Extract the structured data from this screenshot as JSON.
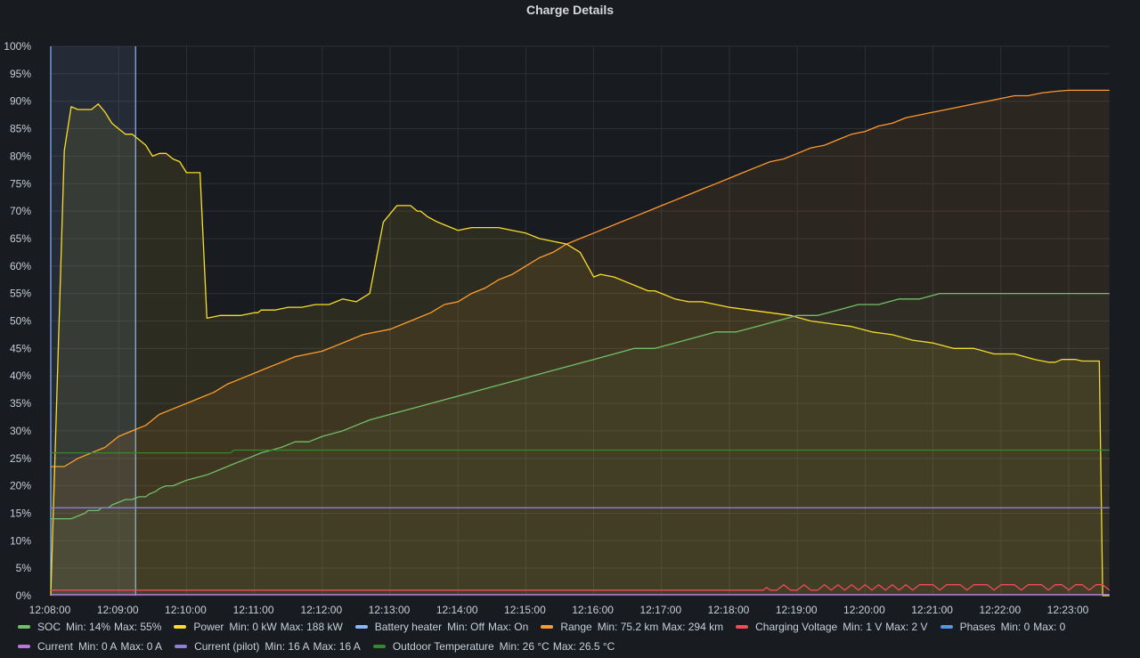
{
  "panel": {
    "title": "Charge Details"
  },
  "chart_data": {
    "type": "line",
    "y_ticks": [
      "0%",
      "5%",
      "10%",
      "15%",
      "20%",
      "25%",
      "30%",
      "35%",
      "40%",
      "45%",
      "50%",
      "55%",
      "60%",
      "65%",
      "70%",
      "75%",
      "80%",
      "85%",
      "90%",
      "95%",
      "100%"
    ],
    "ylim": [
      0,
      100
    ],
    "x_ticks": [
      "12:08:00",
      "12:09:00",
      "12:10:00",
      "12:11:00",
      "12:12:00",
      "12:13:00",
      "12:14:00",
      "12:15:00",
      "12:16:00",
      "12:17:00",
      "12:18:00",
      "12:19:00",
      "12:20:00",
      "12:21:00",
      "12:22:00",
      "12:23:00"
    ],
    "xlim_minutes": [
      0,
      15.65
    ],
    "grid": true,
    "legend_position": "bottom",
    "selection_minutes": [
      0,
      1.25
    ],
    "series": [
      {
        "name": "SOC",
        "color": "#73bf69",
        "x": [
          0,
          0.3,
          0.4,
          0.5,
          0.55,
          0.7,
          0.75,
          0.85,
          0.9,
          1.0,
          1.1,
          1.2,
          1.3,
          1.4,
          1.45,
          1.55,
          1.6,
          1.7,
          1.8,
          2.0,
          2.3,
          2.5,
          2.7,
          2.9,
          3.1,
          3.4,
          3.6,
          3.8,
          4.0,
          4.3,
          4.5,
          4.7,
          5.0,
          5.3,
          5.6,
          5.9,
          6.2,
          6.5,
          6.8,
          7.1,
          7.4,
          7.7,
          8.0,
          8.3,
          8.6,
          8.9,
          9.2,
          9.5,
          9.8,
          10.1,
          10.4,
          10.7,
          11.0,
          11.3,
          11.6,
          11.9,
          12.2,
          12.5,
          12.8,
          13.1,
          13.4,
          13.7,
          14.0,
          14.3,
          14.6,
          14.9,
          15.1,
          15.6
        ],
        "y": [
          14,
          14,
          14.5,
          15,
          15.5,
          15.5,
          16,
          16,
          16.5,
          17,
          17.5,
          17.5,
          18,
          18,
          18.5,
          19,
          19.5,
          20,
          20,
          21,
          22,
          23,
          24,
          25,
          26,
          27,
          28,
          28,
          29,
          30,
          31,
          32,
          33,
          34,
          35,
          36,
          37,
          38,
          39,
          40,
          41,
          42,
          43,
          44,
          45,
          45,
          46,
          47,
          48,
          48,
          49,
          50,
          51,
          51,
          52,
          53,
          53,
          54,
          54,
          55,
          55,
          55,
          55,
          55,
          55,
          55,
          55,
          55
        ]
      },
      {
        "name": "Power",
        "color": "#fade2a",
        "x": [
          0,
          0.2,
          0.3,
          0.4,
          0.5,
          0.6,
          0.65,
          0.7,
          0.8,
          0.9,
          1.0,
          1.1,
          1.2,
          1.3,
          1.4,
          1.5,
          1.6,
          1.7,
          1.8,
          1.9,
          2.0,
          2.1,
          2.2,
          2.3,
          2.5,
          2.6,
          2.8,
          3.0,
          3.05,
          3.1,
          3.3,
          3.5,
          3.7,
          3.9,
          4.1,
          4.3,
          4.5,
          4.7,
          4.9,
          5.1,
          5.2,
          5.3,
          5.4,
          5.45,
          5.55,
          5.7,
          5.9,
          6.0,
          6.2,
          6.35,
          6.5,
          6.6,
          6.8,
          7.0,
          7.2,
          7.4,
          7.6,
          7.8,
          8.0,
          8.1,
          8.3,
          8.5,
          8.7,
          8.8,
          8.9,
          9.0,
          9.2,
          9.4,
          9.6,
          9.8,
          10.0,
          10.3,
          10.6,
          10.9,
          11.2,
          11.5,
          11.8,
          12.1,
          12.4,
          12.7,
          13.0,
          13.3,
          13.6,
          13.9,
          14.2,
          14.5,
          14.7,
          14.8,
          14.9,
          15.0,
          15.1,
          15.2,
          15.3,
          15.45,
          15.5,
          15.6
        ],
        "y": [
          0,
          81,
          89,
          88.5,
          88.5,
          88.5,
          89,
          89.5,
          88,
          86,
          85,
          84,
          84,
          83,
          82,
          80,
          80.5,
          80.5,
          79.5,
          79,
          77,
          77,
          77,
          50.5,
          51,
          51,
          51,
          51.5,
          51.5,
          52,
          52,
          52.5,
          52.5,
          53,
          53,
          54,
          53.5,
          55,
          68,
          71,
          71,
          71,
          70,
          70,
          69,
          68,
          67,
          66.5,
          67,
          67,
          67,
          67,
          66.5,
          66,
          65,
          64.5,
          64,
          62.5,
          58,
          58.5,
          58,
          57,
          56,
          55.5,
          55.5,
          55,
          54,
          53.5,
          53.5,
          53,
          52.5,
          52,
          51.5,
          51,
          50,
          49.5,
          49,
          48,
          47.5,
          46.5,
          46,
          45,
          45,
          44,
          44,
          43,
          42.5,
          42.5,
          43,
          43,
          43,
          42.7,
          42.7,
          42.7,
          0,
          0
        ]
      },
      {
        "name": "Battery heater",
        "color": "#8ab8ff",
        "x": [],
        "y": []
      },
      {
        "name": "Range",
        "color": "#ff9830",
        "x": [
          0,
          0.2,
          0.4,
          0.6,
          0.8,
          1.0,
          1.2,
          1.4,
          1.6,
          1.8,
          2.0,
          2.2,
          2.4,
          2.6,
          2.8,
          3.0,
          3.2,
          3.4,
          3.6,
          3.8,
          4.0,
          4.2,
          4.4,
          4.6,
          4.8,
          5.0,
          5.2,
          5.4,
          5.6,
          5.8,
          6.0,
          6.2,
          6.4,
          6.6,
          6.8,
          7.0,
          7.2,
          7.4,
          7.6,
          7.8,
          8.0,
          8.2,
          8.4,
          8.6,
          8.8,
          9.0,
          9.2,
          9.4,
          9.6,
          9.8,
          10.0,
          10.2,
          10.4,
          10.6,
          10.8,
          11.0,
          11.2,
          11.4,
          11.6,
          11.8,
          12.0,
          12.2,
          12.4,
          12.6,
          12.8,
          13.0,
          13.2,
          13.4,
          13.6,
          13.8,
          14.0,
          14.2,
          14.4,
          14.6,
          14.8,
          15.0,
          15.2,
          15.4,
          15.6
        ],
        "y": [
          23.5,
          23.5,
          25,
          26,
          27,
          29,
          30,
          31,
          33,
          34,
          35,
          36,
          37,
          38.5,
          39.5,
          40.5,
          41.5,
          42.5,
          43.5,
          44,
          44.5,
          45.5,
          46.5,
          47.5,
          48,
          48.5,
          49.5,
          50.5,
          51.5,
          53,
          53.5,
          55,
          56,
          57.5,
          58.5,
          60,
          61.5,
          62.5,
          64,
          65,
          66,
          67,
          68,
          69,
          70,
          71,
          72,
          73,
          74,
          75,
          76,
          77,
          78,
          79,
          79.5,
          80.5,
          81.5,
          82,
          83,
          84,
          84.5,
          85.5,
          86,
          87,
          87.5,
          88,
          88.5,
          89,
          89.5,
          90,
          90.5,
          91,
          91,
          91.5,
          91.8,
          92,
          92,
          92,
          92
        ]
      },
      {
        "name": "Charging Voltage",
        "color": "#f2495c",
        "x": [
          0,
          10.5,
          10.55,
          10.6,
          10.7,
          10.8,
          10.9,
          11.0,
          11.1,
          11.2,
          11.3,
          11.4,
          11.5,
          11.6,
          11.7,
          11.8,
          11.9,
          12.0,
          12.1,
          12.2,
          12.3,
          12.4,
          12.5,
          12.6,
          12.7,
          12.8,
          12.9,
          13.0,
          13.1,
          13.2,
          13.3,
          13.4,
          13.5,
          13.6,
          13.7,
          13.8,
          13.9,
          14.0,
          14.1,
          14.2,
          14.3,
          14.4,
          14.5,
          14.6,
          14.7,
          14.8,
          14.9,
          15.0,
          15.1,
          15.2,
          15.3,
          15.4,
          15.5,
          15.6
        ],
        "y": [
          1,
          1,
          1.5,
          1,
          1,
          2,
          1,
          1,
          2,
          1,
          1,
          2,
          1,
          2,
          1,
          2,
          1,
          2,
          1,
          2,
          1,
          2,
          1,
          2,
          1,
          2,
          2,
          2,
          1,
          2,
          2,
          2,
          1,
          2,
          2,
          2,
          1,
          2,
          2,
          2,
          1,
          2,
          2,
          2,
          1,
          2,
          2,
          1,
          2,
          2,
          1,
          2,
          2,
          1
        ]
      },
      {
        "name": "Phases",
        "color": "#5794f2",
        "x": [],
        "y": []
      },
      {
        "name": "Current",
        "color": "#b877d9",
        "x": [
          0,
          15.6
        ],
        "y": [
          0.2,
          0.2
        ]
      },
      {
        "name": "Current (pilot)",
        "color": "#8f7fd8",
        "x": [
          0,
          15.6
        ],
        "y": [
          16,
          16
        ]
      },
      {
        "name": "Outdoor Temperature",
        "color": "#37872d",
        "x": [
          0,
          2.65,
          2.7,
          15.6
        ],
        "y": [
          26,
          26,
          26.5,
          26.5
        ]
      }
    ]
  },
  "legend": [
    {
      "label": "SOC",
      "min": "Min: 14%",
      "max": "Max: 55%",
      "color": "#73bf69"
    },
    {
      "label": "Power",
      "min": "Min: 0 kW",
      "max": "Max: 188 kW",
      "color": "#fade2a"
    },
    {
      "label": "Battery heater",
      "min": "Min: Off",
      "max": "Max: On",
      "color": "#8ab8ff"
    },
    {
      "label": "Range",
      "min": "Min: 75.2 km",
      "max": "Max: 294 km",
      "color": "#ff9830"
    },
    {
      "label": "Charging Voltage",
      "min": "Min: 1 V",
      "max": "Max: 2 V",
      "color": "#f2495c"
    },
    {
      "label": "Phases",
      "min": "Min: 0",
      "max": "Max: 0",
      "color": "#5794f2"
    },
    {
      "label": "Current",
      "min": "Min: 0 A",
      "max": "Max: 0 A",
      "color": "#b877d9"
    },
    {
      "label": "Current (pilot)",
      "min": "Min: 16 A",
      "max": "Max: 16 A",
      "color": "#8f7fd8"
    },
    {
      "label": "Outdoor Temperature",
      "min": "Min: 26 °C",
      "max": "Max: 26.5 °C",
      "color": "#37872d"
    }
  ]
}
